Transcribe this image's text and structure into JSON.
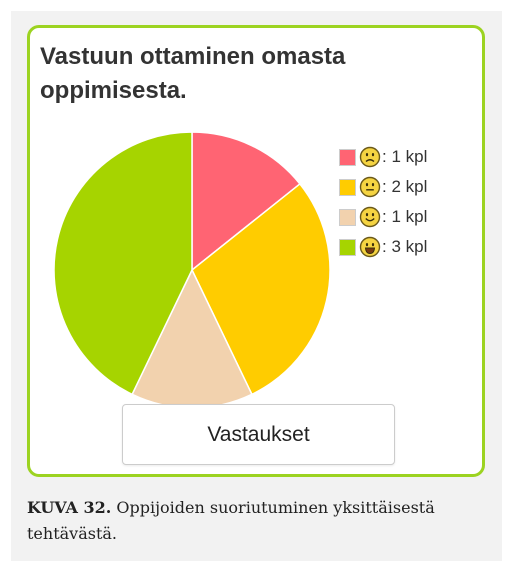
{
  "card": {
    "title": "Vastuun ottaminen omasta oppimisesta.",
    "button_label": "Vastaukset",
    "border_color": "#9cd321"
  },
  "chart_data": {
    "type": "pie",
    "title": "Vastuun ottaminen omasta oppimisesta.",
    "slices": [
      {
        "label": "1 kpl",
        "value": 1,
        "color": "#ff6473",
        "icon": "sad-face-icon"
      },
      {
        "label": "2 kpl",
        "value": 2,
        "color": "#ffcc00",
        "icon": "neutral-face-icon"
      },
      {
        "label": "1 kpl",
        "value": 1,
        "color": "#f2d2ae",
        "icon": "smiling-face-icon"
      },
      {
        "label": "3 kpl",
        "value": 3,
        "color": "#a6d400",
        "icon": "grinning-face-icon"
      }
    ],
    "legend_position": "right",
    "legend_suffix": ": "
  },
  "caption": {
    "label": "KUVA 32.",
    "text": " Oppijoiden suoriutuminen yksittäisestä tehtävästä."
  }
}
